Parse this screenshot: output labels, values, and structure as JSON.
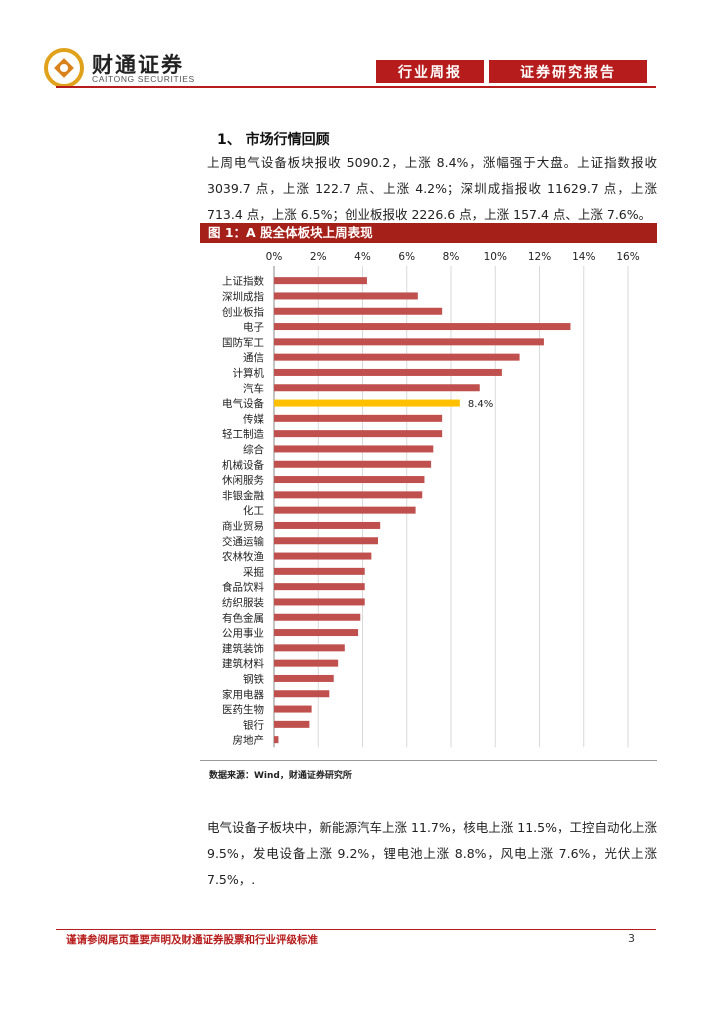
{
  "header": {
    "logo_cn": "财通证券",
    "logo_en": "CAITONG SECURITIES",
    "tag1": "行业周报",
    "tag2": "证券研究报告",
    "brand_color": "#b71c1c"
  },
  "section": {
    "title": "1、 市场行情回顾",
    "para1": "上周电气设备板块报收 5090.2，上涨 8.4%，涨幅强于大盘。上证指数报收 3039.7 点，上涨 122.7 点、上涨 4.2%；深圳成指报收 11629.7 点，上涨 713.4 点，上涨 6.5%；创业板报收 2226.6 点，上涨 157.4 点、上涨 7.6%。"
  },
  "figure": {
    "title": "图 1：A 股全体板块上周表现",
    "source": "数据来源：Wind，财通证券研究所"
  },
  "chart_data": {
    "type": "bar",
    "orientation": "horizontal",
    "title": "图 1：A 股全体板块上周表现",
    "xlim": [
      0,
      16
    ],
    "xticks": [
      "0%",
      "2%",
      "4%",
      "6%",
      "8%",
      "10%",
      "12%",
      "14%",
      "16%"
    ],
    "tick_values": [
      0,
      2,
      4,
      6,
      8,
      10,
      12,
      14,
      16
    ],
    "categories": [
      "上证指数",
      "深圳成指",
      "创业板指",
      "电子",
      "国防军工",
      "通信",
      "计算机",
      "汽车",
      "电气设备",
      "传媒",
      "轻工制造",
      "综合",
      "机械设备",
      "休闲服务",
      "非银金融",
      "化工",
      "商业贸易",
      "交通运输",
      "农林牧渔",
      "采掘",
      "食品饮料",
      "纺织服装",
      "有色金属",
      "公用事业",
      "建筑装饰",
      "建筑材料",
      "钢铁",
      "家用电器",
      "医药生物",
      "银行",
      "房地产"
    ],
    "values": [
      4.2,
      6.5,
      7.6,
      13.4,
      12.2,
      11.1,
      10.3,
      9.3,
      8.4,
      7.6,
      7.6,
      7.2,
      7.1,
      6.8,
      6.7,
      6.4,
      4.8,
      4.7,
      4.4,
      4.1,
      4.1,
      4.1,
      3.9,
      3.8,
      3.2,
      2.9,
      2.7,
      2.5,
      1.7,
      1.6,
      0.2
    ],
    "highlight_index": 8,
    "highlight_label": "8.4%",
    "bar_color": "#c0504d",
    "highlight_color": "#ffc000",
    "grid": true
  },
  "after": {
    "para2": "电气设备子板块中，新能源汽车上涨 11.7%，核电上涨 11.5%，工控自动化上涨 9.5%，发电设备上涨 9.2%，锂电池上涨 8.8%，风电上涨 7.6%，光伏上涨 7.5%，."
  },
  "footer": {
    "disclaimer": "谨请参阅尾页重要声明及财通证券股票和行业评级标准",
    "page": "3"
  }
}
